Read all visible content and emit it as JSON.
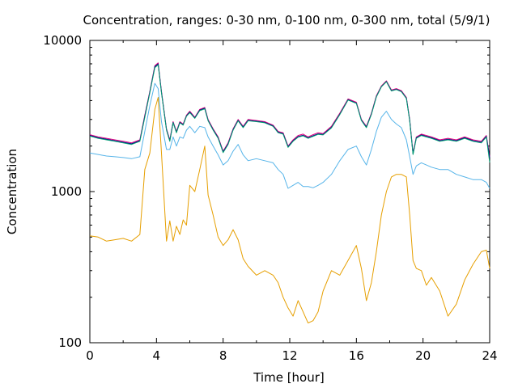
{
  "chart_data": {
    "type": "line",
    "title": "Concentration, ranges: 0-30 nm, 0-100 nm, 0-300 nm, total (5/9/1)",
    "xlabel": "Time [hour]",
    "ylabel": "Concentration",
    "xlim": [
      0,
      24
    ],
    "ylim": [
      100,
      10000
    ],
    "yscale": "log",
    "grid": false,
    "legend": "none",
    "xticks": [
      0,
      4,
      8,
      12,
      16,
      20,
      24
    ],
    "xtick_labels": [
      "0",
      "4",
      "8",
      "12",
      "16",
      "20",
      "24"
    ],
    "yticks": [
      100,
      1000,
      10000
    ],
    "ytick_labels": [
      "100",
      "1000",
      "10000"
    ],
    "x": [
      0,
      0.5,
      1,
      1.5,
      2,
      2.5,
      3,
      3.3,
      3.6,
      3.9,
      4.1,
      4.3,
      4.6,
      4.8,
      5,
      5.2,
      5.4,
      5.6,
      5.8,
      6,
      6.3,
      6.6,
      6.9,
      7.1,
      7.4,
      7.7,
      8,
      8.3,
      8.6,
      8.9,
      9.2,
      9.5,
      10,
      10.5,
      11,
      11.3,
      11.6,
      11.9,
      12.2,
      12.5,
      12.8,
      13.1,
      13.4,
      13.7,
      14,
      14.5,
      15,
      15.5,
      16,
      16.3,
      16.6,
      16.9,
      17.2,
      17.5,
      17.8,
      18.1,
      18.4,
      18.7,
      19,
      19.2,
      19.4,
      19.6,
      19.9,
      20.2,
      20.5,
      21,
      21.5,
      22,
      22.5,
      23,
      23.5,
      23.8,
      24
    ],
    "series": [
      {
        "color": "#e0007f",
        "width": 1,
        "values": [
          2380,
          2300,
          2250,
          2200,
          2150,
          2100,
          2200,
          3200,
          4600,
          6800,
          7100,
          4600,
          2600,
          2200,
          2900,
          2500,
          2900,
          2800,
          3200,
          3400,
          3100,
          3500,
          3600,
          3000,
          2600,
          2300,
          1850,
          2100,
          2600,
          3000,
          2700,
          3000,
          2950,
          2900,
          2750,
          2500,
          2450,
          2000,
          2200,
          2350,
          2400,
          2300,
          2380,
          2450,
          2420,
          2700,
          3300,
          4100,
          3900,
          3000,
          2700,
          3300,
          4300,
          5000,
          5400,
          4700,
          4800,
          4650,
          4200,
          3000,
          1800,
          2300,
          2400,
          2350,
          2300,
          2200,
          2250,
          2200,
          2300,
          2200,
          2150,
          2350,
          1700
        ]
      },
      {
        "color": "#000080",
        "width": 1,
        "values": [
          2350,
          2270,
          2220,
          2170,
          2120,
          2070,
          2170,
          3150,
          4550,
          6700,
          7000,
          4550,
          2570,
          2170,
          2870,
          2470,
          2870,
          2770,
          3170,
          3360,
          3070,
          3460,
          3560,
          2960,
          2570,
          2270,
          1830,
          2070,
          2570,
          2960,
          2670,
          2960,
          2920,
          2870,
          2720,
          2470,
          2420,
          1980,
          2170,
          2310,
          2360,
          2270,
          2340,
          2410,
          2390,
          2660,
          3250,
          4050,
          3850,
          2970,
          2670,
          3260,
          4250,
          4950,
          5350,
          4650,
          4750,
          4600,
          4150,
          2960,
          1780,
          2270,
          2370,
          2320,
          2270,
          2170,
          2220,
          2170,
          2270,
          2170,
          2120,
          2320,
          1680
        ]
      },
      {
        "color": "#009e73",
        "width": 1,
        "values": [
          2330,
          2250,
          2200,
          2150,
          2100,
          2050,
          2150,
          3100,
          4500,
          6600,
          6900,
          4500,
          2550,
          2150,
          2850,
          2450,
          2850,
          2750,
          3150,
          3330,
          3050,
          3430,
          3530,
          2940,
          2550,
          2250,
          1810,
          2050,
          2550,
          2940,
          2650,
          2940,
          2900,
          2850,
          2700,
          2450,
          2400,
          1960,
          2150,
          2290,
          2340,
          2250,
          2320,
          2390,
          2370,
          2640,
          3230,
          4030,
          3830,
          2950,
          2650,
          3240,
          4230,
          4930,
          5330,
          4630,
          4730,
          4580,
          4130,
          2940,
          1760,
          2250,
          2350,
          2300,
          2250,
          2150,
          2200,
          2150,
          2250,
          2150,
          2100,
          2300,
          1560
        ]
      },
      {
        "color": "#56b4e9",
        "width": 1,
        "values": [
          1800,
          1760,
          1720,
          1700,
          1680,
          1650,
          1700,
          2500,
          3700,
          5200,
          4800,
          2900,
          1900,
          1900,
          2300,
          2000,
          2300,
          2250,
          2550,
          2700,
          2450,
          2700,
          2650,
          2300,
          2000,
          1750,
          1500,
          1600,
          1850,
          2050,
          1750,
          1600,
          1650,
          1600,
          1550,
          1400,
          1300,
          1050,
          1100,
          1150,
          1080,
          1080,
          1060,
          1100,
          1150,
          1300,
          1600,
          1900,
          2000,
          1700,
          1500,
          1900,
          2500,
          3100,
          3400,
          3000,
          2800,
          2650,
          2200,
          1700,
          1300,
          1480,
          1550,
          1500,
          1450,
          1400,
          1400,
          1300,
          1250,
          1200,
          1200,
          1150,
          1050
        ]
      },
      {
        "color": "#e69f00",
        "width": 1,
        "values": [
          510,
          500,
          470,
          480,
          490,
          470,
          520,
          1400,
          1800,
          3500,
          4200,
          1800,
          470,
          640,
          470,
          590,
          520,
          650,
          600,
          1100,
          1000,
          1400,
          2000,
          950,
          700,
          500,
          440,
          480,
          560,
          480,
          360,
          320,
          280,
          300,
          280,
          250,
          200,
          170,
          150,
          190,
          160,
          135,
          140,
          160,
          220,
          300,
          280,
          350,
          440,
          310,
          190,
          250,
          400,
          700,
          1000,
          1250,
          1300,
          1300,
          1250,
          700,
          350,
          310,
          300,
          240,
          270,
          220,
          150,
          180,
          260,
          330,
          400,
          410,
          310
        ]
      }
    ]
  }
}
